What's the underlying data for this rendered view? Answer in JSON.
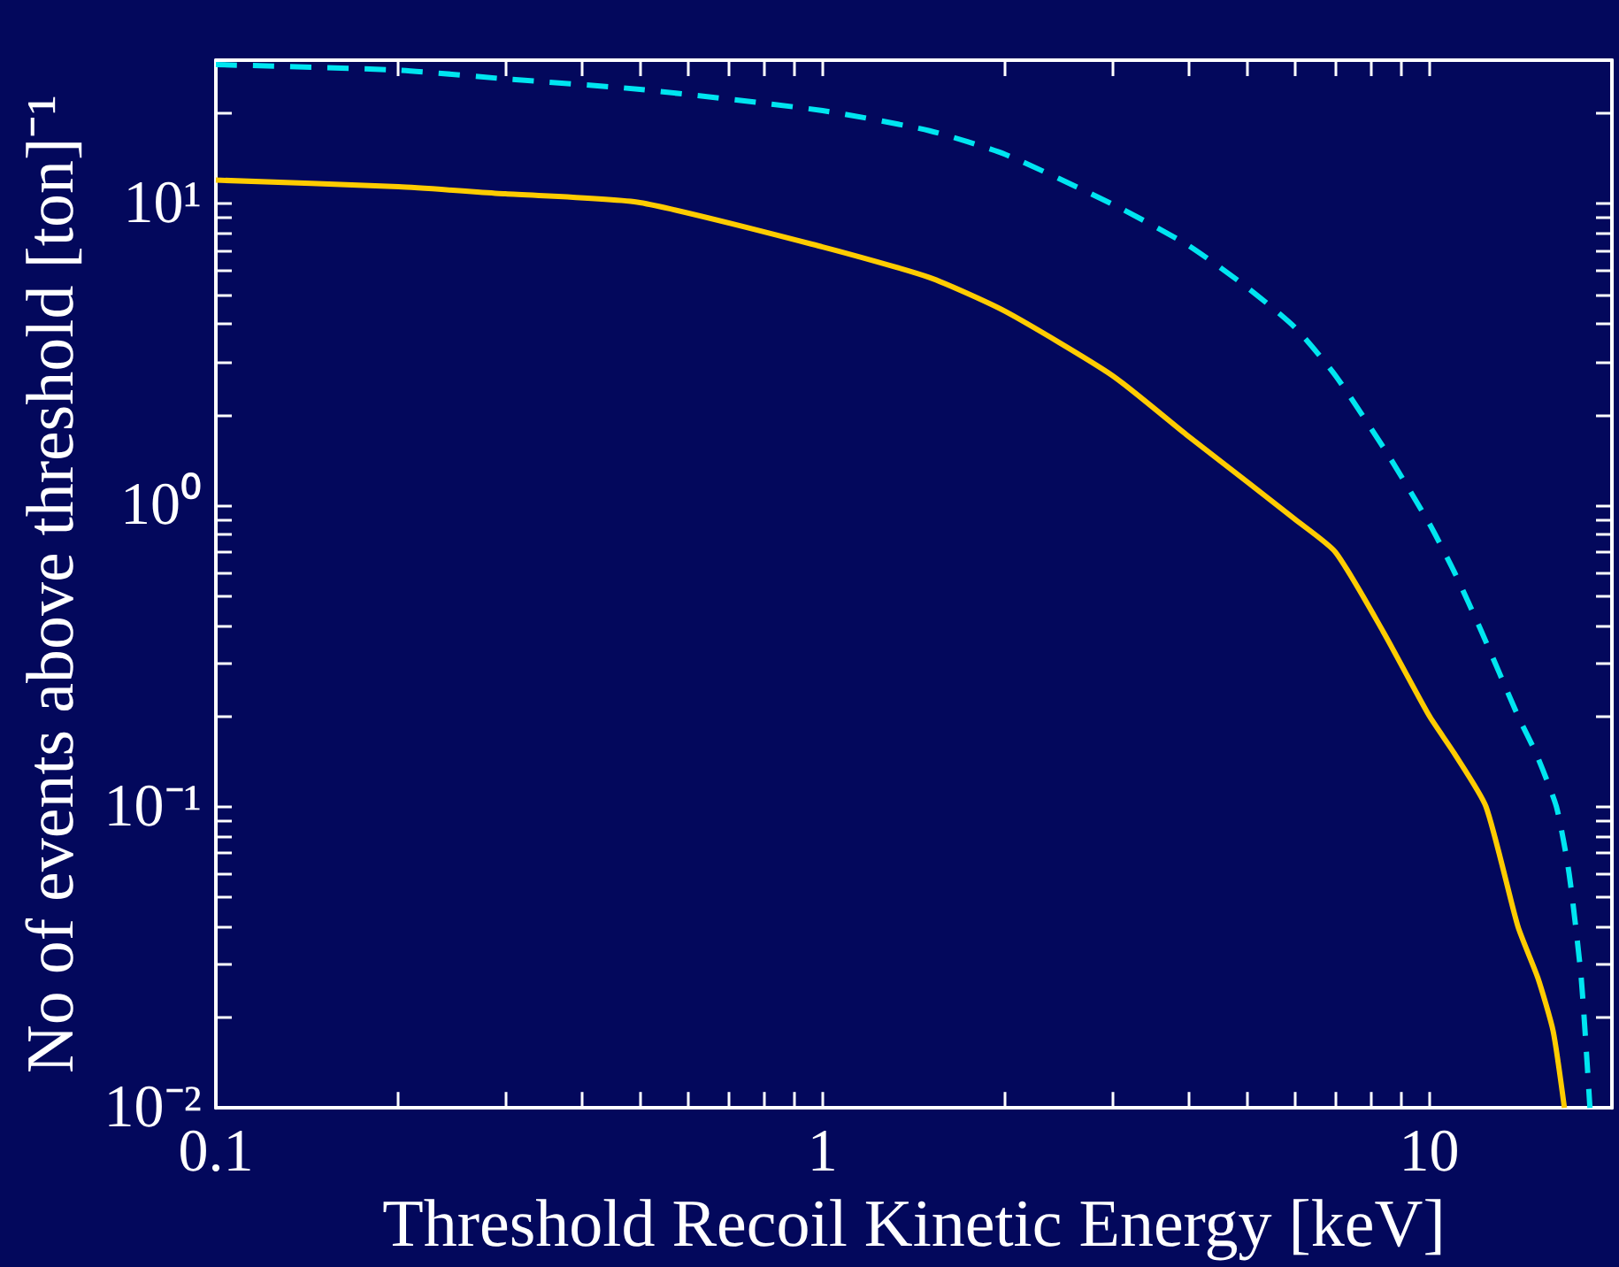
{
  "chart_data": {
    "type": "line",
    "xlabel": "Threshold Recoil Kinetic Energy [keV]",
    "ylabel": "No of events above threshold [ton]⁻¹",
    "log": "xy",
    "grid": false,
    "marker": "none",
    "xlim": [
      0.1,
      20
    ],
    "ylim": [
      0.01,
      30
    ],
    "xticks": [
      0.1,
      {
        "value": 0.2,
        "label": null
      },
      {
        "value": 0.3,
        "label": null
      },
      {
        "value": 0.4,
        "label": null
      },
      {
        "value": 0.5,
        "label": null
      },
      {
        "value": 0.6,
        "label": null
      },
      {
        "value": 0.7,
        "label": null
      },
      {
        "value": 0.8,
        "label": null
      },
      {
        "value": 0.9,
        "label": null
      },
      1,
      {
        "value": 2,
        "label": null
      },
      {
        "value": 3,
        "label": null
      },
      {
        "value": 4,
        "label": null
      },
      {
        "value": 5,
        "label": null
      },
      {
        "value": 6,
        "label": null
      },
      {
        "value": 7,
        "label": null
      },
      {
        "value": 8,
        "label": null
      },
      {
        "value": 9,
        "label": null
      },
      10
    ],
    "yticks": [
      {
        "value": 0.01,
        "label": "10⁻²"
      },
      {
        "value": 0.02,
        "label": null
      },
      {
        "value": 0.03,
        "label": null
      },
      {
        "value": 0.04,
        "label": null
      },
      {
        "value": 0.05,
        "label": null
      },
      {
        "value": 0.06,
        "label": null
      },
      {
        "value": 0.07,
        "label": null
      },
      {
        "value": 0.08,
        "label": null
      },
      {
        "value": 0.09,
        "label": null
      },
      {
        "value": 0.1,
        "label": "10⁻¹"
      },
      {
        "value": 0.2,
        "label": null
      },
      {
        "value": 0.3,
        "label": null
      },
      {
        "value": 0.4,
        "label": null
      },
      {
        "value": 0.5,
        "label": null
      },
      {
        "value": 0.6,
        "label": null
      },
      {
        "value": 0.7,
        "label": null
      },
      {
        "value": 0.8,
        "label": null
      },
      {
        "value": 0.9,
        "label": null
      },
      {
        "value": 1,
        "label": "10⁰"
      },
      {
        "value": 2,
        "label": null
      },
      {
        "value": 3,
        "label": null
      },
      {
        "value": 4,
        "label": null
      },
      {
        "value": 5,
        "label": null
      },
      {
        "value": 6,
        "label": null
      },
      {
        "value": 7,
        "label": null
      },
      {
        "value": 8,
        "label": null
      },
      {
        "value": 9,
        "label": null
      },
      {
        "value": 10,
        "label": "10¹"
      },
      {
        "value": 20,
        "label": null
      }
    ],
    "series": [
      {
        "color": "#ffcc00",
        "line_style": "solid",
        "x": [
          0.1,
          0.2,
          0.3,
          0.5,
          1,
          1.5,
          2,
          3,
          4,
          5,
          6,
          7,
          8.4,
          10,
          11,
          12.4,
          14,
          15.1,
          16,
          16.7
        ],
        "values": [
          12,
          11.4,
          10.8,
          10.1,
          7.2,
          5.7,
          4.4,
          2.7,
          1.7,
          1.2,
          0.9,
          0.7,
          0.38,
          0.2,
          0.15,
          0.1,
          0.04,
          0.027,
          0.018,
          0.01
        ]
      },
      {
        "color": "#00e5f0",
        "line_style": "dashed",
        "x": [
          0.1,
          0.2,
          0.3,
          0.5,
          1,
          1.5,
          2,
          3,
          4,
          5,
          6,
          7,
          8.5,
          10,
          11,
          12.2,
          14,
          15,
          16.2,
          17,
          17.8,
          18.4
        ],
        "values": [
          29,
          27.8,
          26,
          24,
          20.4,
          17.5,
          14.6,
          10,
          7.3,
          5.3,
          3.9,
          2.7,
          1.5,
          0.87,
          0.6,
          0.38,
          0.2,
          0.15,
          0.1,
          0.06,
          0.027,
          0.01
        ]
      }
    ]
  }
}
